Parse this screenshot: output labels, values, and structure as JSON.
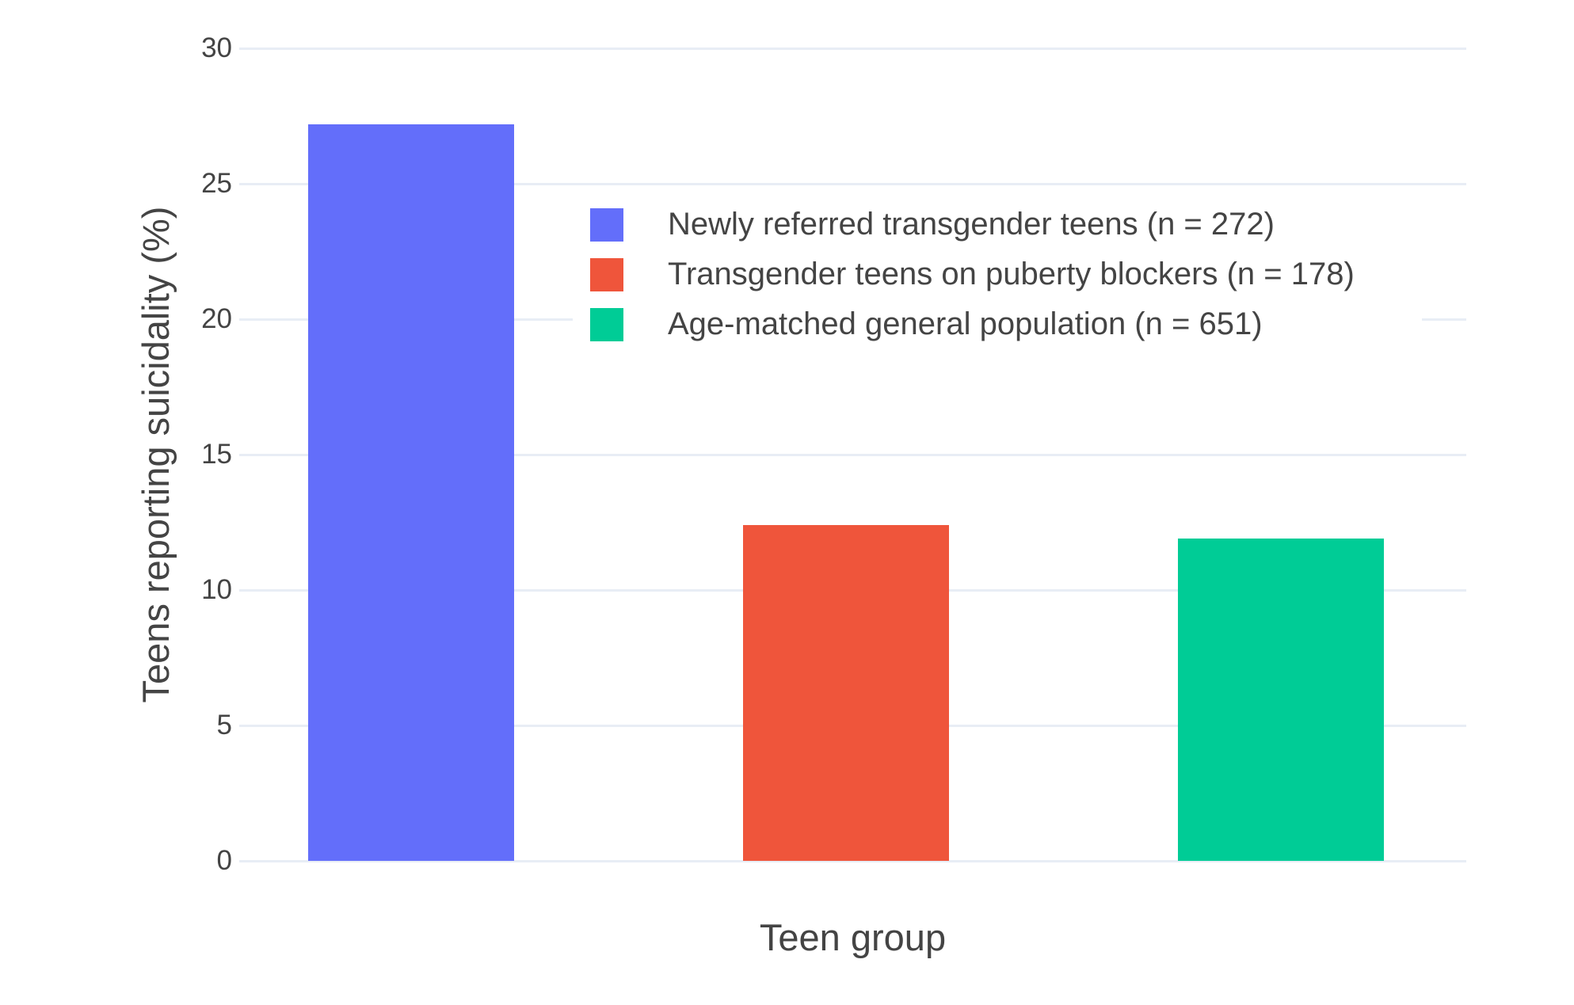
{
  "chart_data": {
    "type": "bar",
    "title": "",
    "xlabel": "Teen group",
    "ylabel": "Teens reporting suicidality (%)",
    "ylim": [
      0,
      30
    ],
    "yticks": [
      0,
      5,
      10,
      15,
      20,
      25,
      30
    ],
    "grid": true,
    "legend_position": "inside-upper-center",
    "categories": [
      "Newly referred transgender teens (n = 272)",
      "Transgender teens on puberty blockers (n = 178)",
      "Age-matched general population (n = 651)"
    ],
    "series": [
      {
        "name": "Newly referred transgender teens (n = 272)",
        "value": 27.2,
        "color": "#636EFA"
      },
      {
        "name": "Transgender teens on puberty blockers (n = 178)",
        "value": 12.4,
        "color": "#EF553B"
      },
      {
        "name": "Age-matched general population (n = 651)",
        "value": 11.9,
        "color": "#00CC96"
      }
    ]
  },
  "colors": {
    "background": "#FFFFFF",
    "gridline": "#E8EDF5",
    "text": "#444444"
  }
}
